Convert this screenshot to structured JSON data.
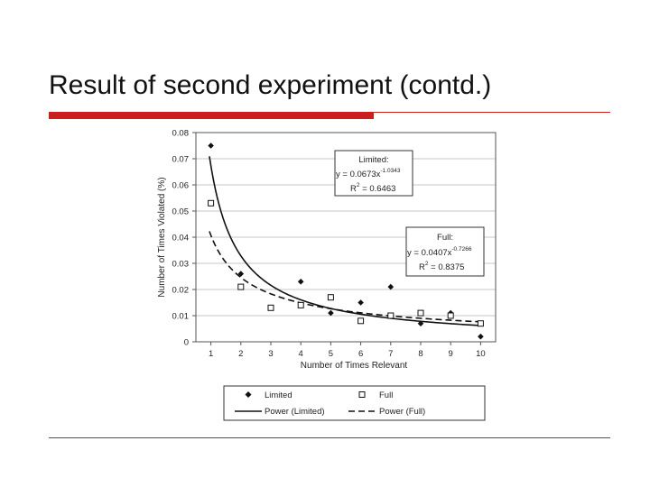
{
  "slide": {
    "title": "Result of second experiment (contd.)"
  },
  "chart_data": {
    "type": "scatter",
    "title": "",
    "xlabel": "Number of Times Relevant",
    "ylabel": "Number of Times Violated (%)",
    "xlim": [
      0.5,
      10.5
    ],
    "ylim": [
      0,
      0.08
    ],
    "x_ticks": [
      1,
      2,
      3,
      4,
      5,
      6,
      7,
      8,
      9,
      10
    ],
    "y_ticks": [
      0,
      0.01,
      0.02,
      0.03,
      0.04,
      0.05,
      0.06,
      0.07,
      0.08
    ],
    "y_tick_labels": [
      "0",
      "0.01",
      "0.02",
      "0.03",
      "0.04",
      "0.05",
      "0.06",
      "0.07",
      "0.08"
    ],
    "grid": "horizontal",
    "series": [
      {
        "name": "Limited",
        "marker": "diamond",
        "color": "#111111",
        "x": [
          1,
          2,
          3,
          4,
          5,
          6,
          7,
          8,
          9,
          10
        ],
        "y": [
          0.075,
          0.026,
          0.013,
          0.023,
          0.011,
          0.015,
          0.021,
          0.007,
          0.011,
          0.002
        ]
      },
      {
        "name": "Full",
        "marker": "square",
        "color": "#111111",
        "x": [
          1,
          2,
          3,
          4,
          5,
          6,
          7,
          8,
          9,
          10
        ],
        "y": [
          0.053,
          0.021,
          0.013,
          0.014,
          0.017,
          0.008,
          0.01,
          0.011,
          0.01,
          0.007
        ]
      }
    ],
    "fits": [
      {
        "name": "Power (Limited)",
        "style": "solid",
        "a": 0.0673,
        "b": -1.0343,
        "box_lines": [
          "Limited:",
          "y = 0.0673x",
          "-1.0343",
          "R",
          "2",
          " = 0.6463"
        ]
      },
      {
        "name": "Power (Full)",
        "style": "dashed",
        "a": 0.0407,
        "b": -0.7266,
        "box_lines": [
          "Full:",
          "y = 0.0407x",
          "-0.7266",
          "R",
          "2",
          " = 0.8375"
        ]
      }
    ],
    "legend": {
      "position": "bottom",
      "entries": [
        "Limited",
        "Full",
        "Power (Limited)",
        "Power (Full)"
      ]
    }
  }
}
